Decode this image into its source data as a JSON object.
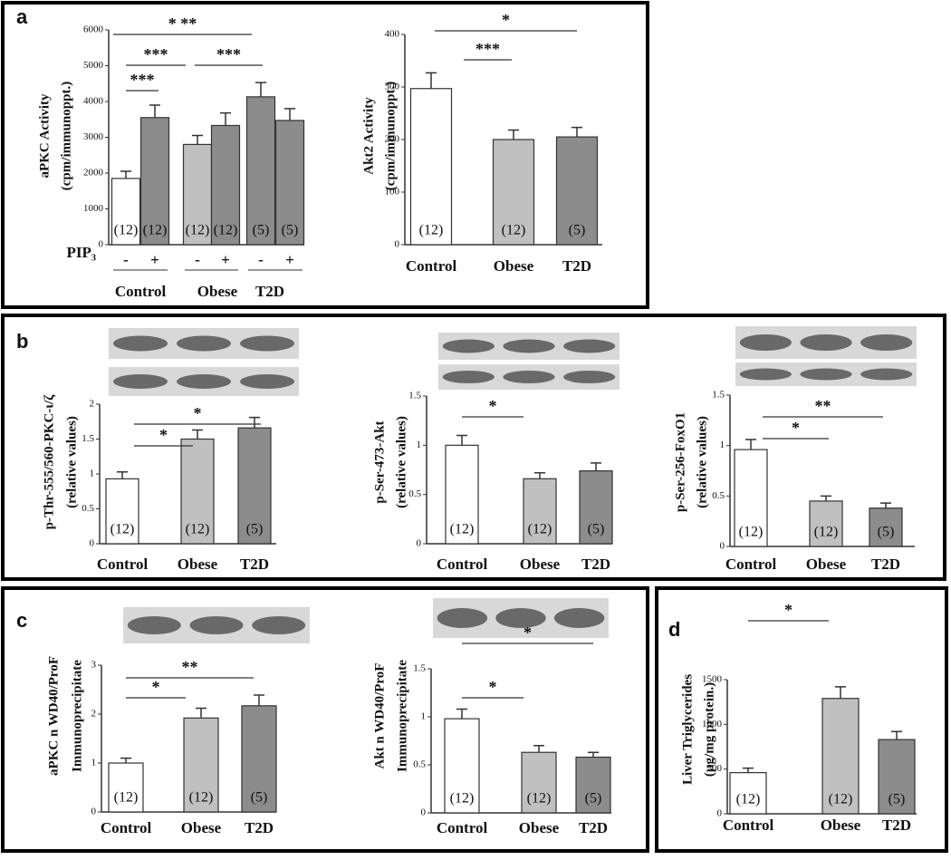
{
  "chart_data": [
    {
      "type": "bar",
      "panel": "a",
      "ylabel": [
        "aPKC Activity",
        "(cpm/immunoppt.)"
      ],
      "categories": [
        "-",
        "+",
        "-",
        "+",
        "-",
        "+"
      ],
      "groups": [
        "Control",
        "Obese",
        "T2D"
      ],
      "group_title": "PIP₃",
      "values": [
        1850,
        3550,
        2800,
        3330,
        4130,
        3470
      ],
      "errors": [
        200,
        350,
        250,
        350,
        400,
        330
      ],
      "n_labels": [
        "(12)",
        "(12)",
        "(12)",
        "(12)",
        "(5)",
        "(5)"
      ],
      "colors": [
        "#ffffff",
        "#8c8c8c",
        "#c0c0c0",
        "#8c8c8c",
        "#8c8c8c",
        "#8c8c8c"
      ],
      "ylim": [
        0,
        6000
      ],
      "yticks": [
        0,
        1000,
        2000,
        3000,
        4000,
        5000,
        6000
      ],
      "significance": [
        "***",
        "***",
        "***",
        "* **"
      ]
    },
    {
      "type": "bar",
      "ylabel": [
        "Akt2 Activity",
        "(cpm/immunoppt.)"
      ],
      "categories": [
        "Control",
        "Obese",
        "T2D"
      ],
      "values": [
        297,
        200,
        205
      ],
      "errors": [
        30,
        18,
        18
      ],
      "n_labels": [
        "(12)",
        "(12)",
        "(5)"
      ],
      "colors": [
        "#ffffff",
        "#c0c0c0",
        "#8c8c8c"
      ],
      "ylim": [
        0,
        400
      ],
      "yticks": [
        0,
        100,
        200,
        300,
        400
      ],
      "significance": [
        "*",
        "***"
      ]
    },
    {
      "type": "bar",
      "panel": "b",
      "ylabel": [
        "p-Thr-555/560-PKC-ι/ζ",
        "(relative values)"
      ],
      "categories": [
        "Control",
        "Obese",
        "T2D"
      ],
      "values": [
        0.93,
        1.5,
        1.66
      ],
      "errors": [
        0.1,
        0.13,
        0.15
      ],
      "n_labels": [
        "(12)",
        "(12)",
        "(5)"
      ],
      "colors": [
        "#ffffff",
        "#c0c0c0",
        "#8c8c8c"
      ],
      "ylim": [
        0,
        2
      ],
      "yticks": [
        0,
        0.5,
        1,
        1.5,
        2
      ],
      "significance": [
        "*",
        "*"
      ]
    },
    {
      "type": "bar",
      "ylabel": [
        "p-Ser-473-Akt",
        "(relative values)"
      ],
      "categories": [
        "Control",
        "Obese",
        "T2D"
      ],
      "values": [
        1.0,
        0.66,
        0.74
      ],
      "errors": [
        0.1,
        0.06,
        0.08
      ],
      "n_labels": [
        "(12)",
        "(12)",
        "(5)"
      ],
      "colors": [
        "#ffffff",
        "#c0c0c0",
        "#8c8c8c"
      ],
      "ylim": [
        0,
        1.5
      ],
      "yticks": [
        0,
        0.5,
        1,
        1.5
      ],
      "significance": [
        "*"
      ]
    },
    {
      "type": "bar",
      "ylabel": [
        "p-Ser-256-FoxO1",
        "(relative values)"
      ],
      "categories": [
        "Control",
        "Obese",
        "T2D"
      ],
      "values": [
        0.96,
        0.45,
        0.38
      ],
      "errors": [
        0.1,
        0.05,
        0.05
      ],
      "n_labels": [
        "(12)",
        "(12)",
        "(5)"
      ],
      "colors": [
        "#ffffff",
        "#c0c0c0",
        "#8c8c8c"
      ],
      "ylim": [
        0,
        1.5
      ],
      "yticks": [
        0,
        0.5,
        1,
        1.5
      ],
      "significance": [
        "**",
        "*"
      ]
    },
    {
      "type": "bar",
      "panel": "c",
      "ylabel": [
        "aPKC n WD40/ProF",
        "Immunoprecipitate"
      ],
      "categories": [
        "Control",
        "Obese",
        "T2D"
      ],
      "values": [
        1.0,
        1.92,
        2.17
      ],
      "errors": [
        0.1,
        0.2,
        0.22
      ],
      "n_labels": [
        "(12)",
        "(12)",
        "(5)"
      ],
      "colors": [
        "#ffffff",
        "#c0c0c0",
        "#8c8c8c"
      ],
      "ylim": [
        0,
        3
      ],
      "yticks": [
        0,
        1,
        2,
        3
      ],
      "significance": [
        "**",
        "*"
      ]
    },
    {
      "type": "bar",
      "ylabel": [
        "Akt n WD40/ProF",
        "Immunoprecipitate"
      ],
      "categories": [
        "Control",
        "Obese",
        "T2D"
      ],
      "values": [
        0.98,
        0.63,
        0.58
      ],
      "errors": [
        0.1,
        0.07,
        0.05
      ],
      "n_labels": [
        "(12)",
        "(12)",
        "(5)"
      ],
      "colors": [
        "#ffffff",
        "#c0c0c0",
        "#8c8c8c"
      ],
      "ylim": [
        0,
        1.5
      ],
      "yticks": [
        0,
        0.5,
        1,
        1.5
      ],
      "significance": [
        "*",
        "*"
      ]
    },
    {
      "type": "bar",
      "panel": "d",
      "ylabel": [
        "Liver Triglycerides",
        "(µg/mg protein.)"
      ],
      "categories": [
        "Control",
        "Obese",
        "T2D"
      ],
      "values": [
        460,
        1290,
        830
      ],
      "errors": [
        50,
        130,
        90
      ],
      "n_labels": [
        "(12)",
        "(12)",
        "(5)"
      ],
      "colors": [
        "#ffffff",
        "#c0c0c0",
        "#8c8c8c"
      ],
      "ylim": [
        0,
        1500
      ],
      "yticks": [
        0,
        500,
        1000,
        1500
      ],
      "significance": [
        "*"
      ]
    }
  ]
}
